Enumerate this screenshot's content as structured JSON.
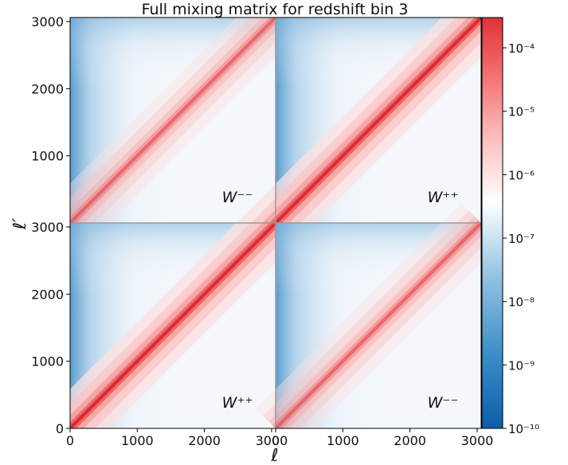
{
  "chart_data": {
    "type": "heatmap",
    "title": "Full mixing matrix for redshift bin 3",
    "xlabel": "ℓ",
    "ylabel": "ℓ′",
    "x_range": [
      0,
      3060
    ],
    "y_range": [
      0,
      3060
    ],
    "x_ticks": [
      {
        "value": 0,
        "label": "0"
      },
      {
        "value": 1000,
        "label": "1000"
      },
      {
        "value": 2000,
        "label": "2000"
      },
      {
        "value": 3000,
        "label": "3000"
      }
    ],
    "y_ticks": [
      {
        "value": 0,
        "label": "0"
      },
      {
        "value": 1000,
        "label": "1000"
      },
      {
        "value": 2000,
        "label": "2000"
      },
      {
        "value": 3000,
        "label": "3000"
      }
    ],
    "panels": [
      {
        "position": "top-left",
        "label": "W⁻⁻",
        "diag_strength": 0.45
      },
      {
        "position": "top-right",
        "label": "W⁺⁺",
        "diag_strength": 1.0
      },
      {
        "position": "bottom-left",
        "label": "W⁺⁺",
        "diag_strength": 1.0
      },
      {
        "position": "bottom-right",
        "label": "W⁻⁻",
        "diag_strength": 0.45
      }
    ],
    "colorbar": {
      "scale": "log",
      "range": [
        1e-10,
        0.0003
      ],
      "colormap": "blue-white-red",
      "low_color": "#1f6fb4",
      "mid_color": "#ffffff",
      "high_color": "#de2d26",
      "ticks": [
        {
          "value": 1e-10,
          "label": "10⁻¹⁰"
        },
        {
          "value": 1e-09,
          "label": "10⁻⁹"
        },
        {
          "value": 1e-08,
          "label": "10⁻⁸"
        },
        {
          "value": 1e-07,
          "label": "10⁻⁷"
        },
        {
          "value": 1e-06,
          "label": "10⁻⁶"
        },
        {
          "value": 1e-05,
          "label": "10⁻⁵"
        },
        {
          "value": 0.0001,
          "label": "10⁻⁴"
        }
      ]
    }
  }
}
